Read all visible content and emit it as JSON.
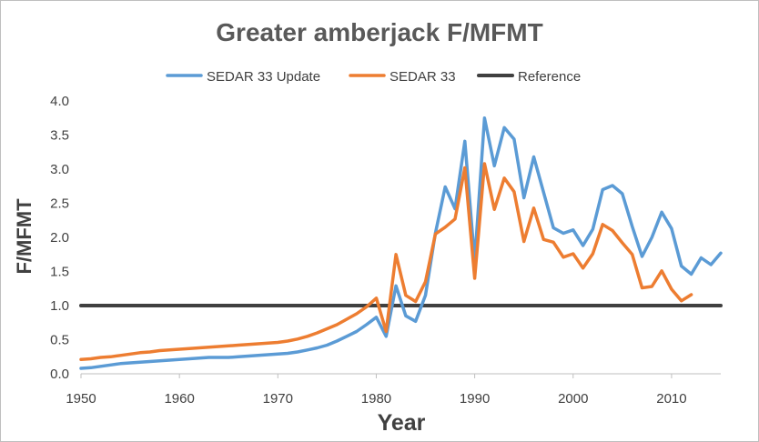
{
  "chart_data": {
    "type": "line",
    "title": "Greater amberjack F/MFMT",
    "xlabel": "Year",
    "ylabel": "F/MFMT",
    "xlim": [
      1950,
      2015
    ],
    "ylim": [
      0,
      4
    ],
    "x_ticks": [
      "1950",
      "1960",
      "1970",
      "1980",
      "1990",
      "2000",
      "2010"
    ],
    "y_ticks": [
      "0.0",
      "0.5",
      "1.0",
      "1.5",
      "2.0",
      "2.5",
      "3.0",
      "3.5",
      "4.0"
    ],
    "grid": false,
    "legend_position": "top",
    "series": [
      {
        "name": "SEDAR 33 Update",
        "color": "#5b9bd5",
        "x": [
          1950,
          1951,
          1952,
          1953,
          1954,
          1955,
          1956,
          1957,
          1958,
          1959,
          1960,
          1961,
          1962,
          1963,
          1964,
          1965,
          1966,
          1967,
          1968,
          1969,
          1970,
          1971,
          1972,
          1973,
          1974,
          1975,
          1976,
          1977,
          1978,
          1979,
          1980,
          1981,
          1982,
          1983,
          1984,
          1985,
          1986,
          1987,
          1988,
          1989,
          1990,
          1991,
          1992,
          1993,
          1994,
          1995,
          1996,
          1997,
          1998,
          1999,
          2000,
          2001,
          2002,
          2003,
          2004,
          2005,
          2006,
          2007,
          2008,
          2009,
          2010,
          2011,
          2012,
          2013,
          2014,
          2015
        ],
        "values": [
          0.08,
          0.09,
          0.11,
          0.13,
          0.15,
          0.16,
          0.17,
          0.18,
          0.19,
          0.2,
          0.21,
          0.22,
          0.23,
          0.24,
          0.24,
          0.24,
          0.25,
          0.26,
          0.27,
          0.28,
          0.29,
          0.3,
          0.32,
          0.35,
          0.38,
          0.42,
          0.48,
          0.55,
          0.62,
          0.72,
          0.83,
          0.55,
          1.29,
          0.85,
          0.77,
          1.15,
          2.06,
          2.74,
          2.42,
          3.41,
          1.65,
          3.75,
          3.05,
          3.61,
          3.44,
          2.58,
          3.18,
          2.66,
          2.14,
          2.06,
          2.11,
          1.88,
          2.12,
          2.7,
          2.76,
          2.64,
          2.16,
          1.72,
          2.0,
          2.37,
          2.13,
          1.58,
          1.46,
          1.7,
          1.6,
          1.77
        ]
      },
      {
        "name": "SEDAR 33",
        "color": "#ed7d31",
        "x": [
          1950,
          1951,
          1952,
          1953,
          1954,
          1955,
          1956,
          1957,
          1958,
          1959,
          1960,
          1961,
          1962,
          1963,
          1964,
          1965,
          1966,
          1967,
          1968,
          1969,
          1970,
          1971,
          1972,
          1973,
          1974,
          1975,
          1976,
          1977,
          1978,
          1979,
          1980,
          1981,
          1982,
          1983,
          1984,
          1985,
          1986,
          1987,
          1988,
          1989,
          1990,
          1991,
          1992,
          1993,
          1994,
          1995,
          1996,
          1997,
          1998,
          1999,
          2000,
          2001,
          2002,
          2003,
          2004,
          2005,
          2006,
          2007,
          2008,
          2009,
          2010,
          2011,
          2012
        ],
        "values": [
          0.21,
          0.22,
          0.24,
          0.25,
          0.27,
          0.29,
          0.31,
          0.32,
          0.34,
          0.35,
          0.36,
          0.37,
          0.38,
          0.39,
          0.4,
          0.41,
          0.42,
          0.43,
          0.44,
          0.45,
          0.46,
          0.48,
          0.51,
          0.55,
          0.6,
          0.66,
          0.72,
          0.8,
          0.88,
          0.98,
          1.11,
          0.62,
          1.75,
          1.15,
          1.06,
          1.35,
          2.05,
          2.15,
          2.27,
          3.02,
          1.4,
          3.08,
          2.41,
          2.87,
          2.67,
          1.94,
          2.43,
          1.97,
          1.93,
          1.71,
          1.76,
          1.55,
          1.76,
          2.19,
          2.1,
          1.92,
          1.75,
          1.26,
          1.28,
          1.51,
          1.24,
          1.07,
          1.16
        ]
      },
      {
        "name": "Reference",
        "color": "#404040",
        "x": [
          1950,
          2015
        ],
        "values": [
          1.0,
          1.0
        ]
      }
    ]
  }
}
